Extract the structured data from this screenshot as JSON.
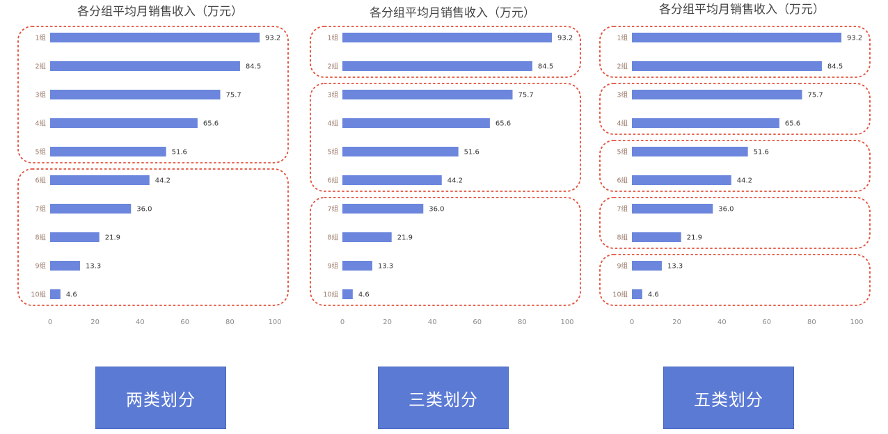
{
  "colors": {
    "bar": "#6b86dc",
    "group_border": "#e2523c",
    "caption_bg": "#5b7ad4",
    "caption_border": "#4766c0"
  },
  "chart_data": [
    {
      "type": "bar",
      "orientation": "horizontal",
      "title": "各分组平均月销售收入（万元）",
      "categories": [
        "1组",
        "2组",
        "3组",
        "4组",
        "5组",
        "6组",
        "7组",
        "8组",
        "9组",
        "10组"
      ],
      "values": [
        93.2,
        84.5,
        75.7,
        65.6,
        51.6,
        44.2,
        36.0,
        21.9,
        13.3,
        4.6
      ],
      "value_labels": [
        "93.2",
        "84.5",
        "75.7",
        "65.6",
        "51.6",
        "44.2",
        "36.0",
        "21.9",
        "13.3",
        "4.6"
      ],
      "xlim": [
        0,
        100
      ],
      "xticks": [
        0,
        20,
        40,
        60,
        80,
        100
      ],
      "grid": false,
      "groups": [
        [
          1,
          5
        ],
        [
          6,
          10
        ]
      ],
      "caption": "两类划分"
    },
    {
      "type": "bar",
      "orientation": "horizontal",
      "title": "各分组平均月销售收入（万元）",
      "categories": [
        "1组",
        "2组",
        "3组",
        "4组",
        "5组",
        "6组",
        "7组",
        "8组",
        "9组",
        "10组"
      ],
      "values": [
        93.2,
        84.5,
        75.7,
        65.6,
        51.6,
        44.2,
        36.0,
        21.9,
        13.3,
        4.6
      ],
      "value_labels": [
        "93.2",
        "84.5",
        "75.7",
        "65.6",
        "51.6",
        "44.2",
        "36.0",
        "21.9",
        "13.3",
        "4.6"
      ],
      "xlim": [
        0,
        100
      ],
      "xticks": [
        0,
        20,
        40,
        60,
        80,
        100
      ],
      "grid": false,
      "groups": [
        [
          1,
          2
        ],
        [
          3,
          6
        ],
        [
          7,
          10
        ]
      ],
      "caption": "三类划分"
    },
    {
      "type": "bar",
      "orientation": "horizontal",
      "title": "各分组平均月销售收入（万元）",
      "categories": [
        "1组",
        "2组",
        "3组",
        "4组",
        "5组",
        "6组",
        "7组",
        "8组",
        "9组",
        "10组"
      ],
      "values": [
        93.2,
        84.5,
        75.7,
        65.6,
        51.6,
        44.2,
        36.0,
        21.9,
        13.3,
        4.6
      ],
      "value_labels": [
        "93.2",
        "84.5",
        "75.7",
        "65.6",
        "51.6",
        "44.2",
        "36.0",
        "21.9",
        "13.3",
        "4.6"
      ],
      "xlim": [
        0,
        100
      ],
      "xticks": [
        0,
        20,
        40,
        60,
        80,
        100
      ],
      "grid": false,
      "groups": [
        [
          1,
          2
        ],
        [
          3,
          4
        ],
        [
          5,
          6
        ],
        [
          7,
          8
        ],
        [
          9,
          10
        ]
      ],
      "caption": "五类划分"
    }
  ]
}
